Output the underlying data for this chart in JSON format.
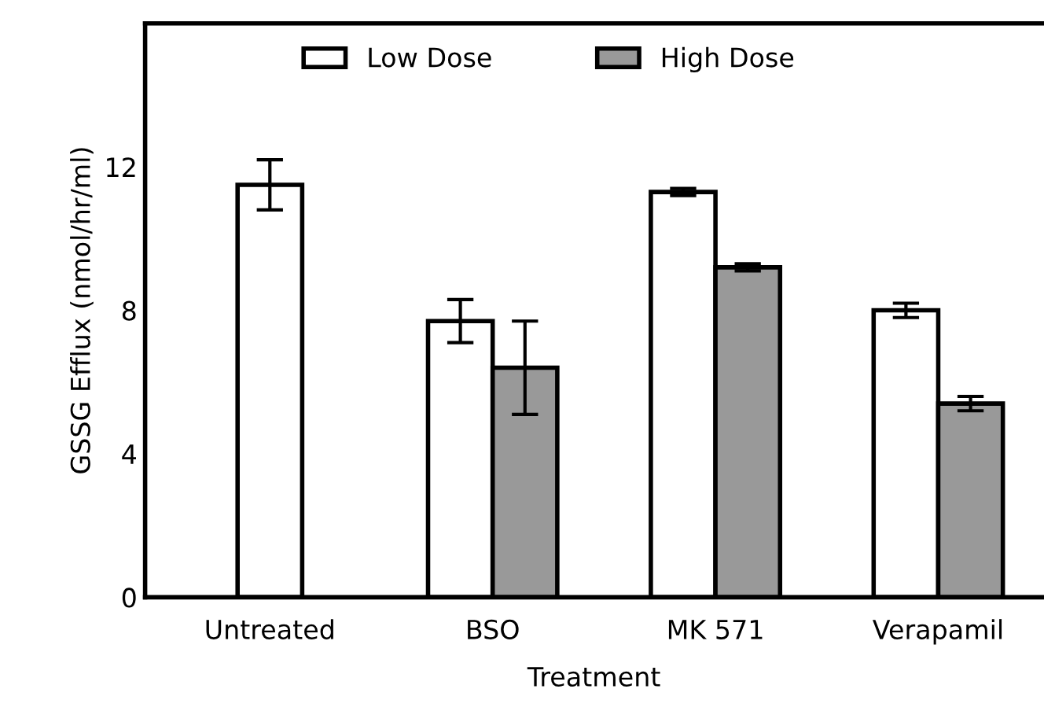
{
  "chart_data": {
    "type": "bar",
    "xlabel": "Treatment",
    "ylabel": "GSSG Efflux (nmol/hr/ml)",
    "categories": [
      "Untreated",
      "BSO",
      "MK 571",
      "Verapamil"
    ],
    "series": [
      {
        "name": "Low Dose",
        "color": "#ffffff",
        "values": [
          11.5,
          7.7,
          11.3,
          8.0
        ],
        "errors": [
          0.7,
          0.6,
          0.1,
          0.2
        ]
      },
      {
        "name": "High Dose",
        "color": "#999999",
        "values": [
          null,
          6.4,
          9.2,
          5.4
        ],
        "errors": [
          null,
          1.3,
          0.1,
          0.2
        ]
      }
    ],
    "ylim": [
      0,
      16
    ],
    "yticks": [
      0,
      4,
      8,
      12
    ],
    "grid": false,
    "legend": "top"
  }
}
